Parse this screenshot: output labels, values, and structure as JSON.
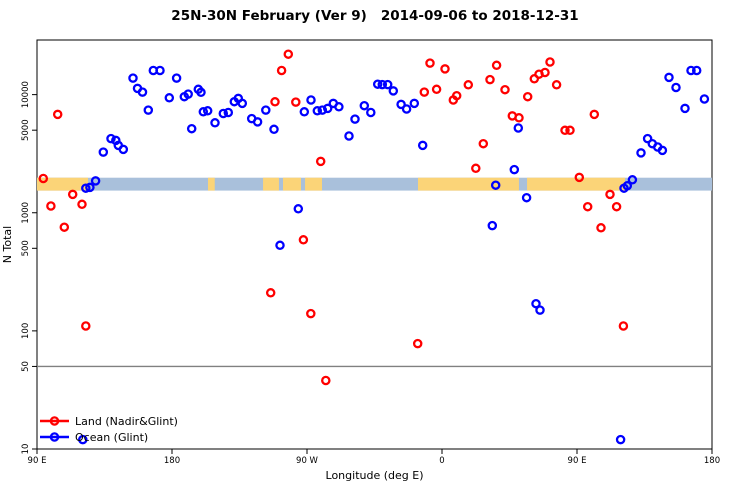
{
  "chart_data": {
    "type": "scatter",
    "title": "25N-30N February (Ver 9)   2014-09-06 to 2018-12-31",
    "xlabel": "Longitude (deg E)",
    "ylabel": "N Total",
    "x_axis": {
      "min": 90,
      "max": 540,
      "note": "longitude axis wraps eastward from 90E around the globe to 180",
      "ticks": [
        {
          "pos": 90,
          "label": "90 E"
        },
        {
          "pos": 180,
          "label": "180"
        },
        {
          "pos": 270,
          "label": "90 W"
        },
        {
          "pos": 360,
          "label": "0"
        },
        {
          "pos": 450,
          "label": "90 E"
        },
        {
          "pos": 540,
          "label": "180"
        }
      ]
    },
    "y_axis": {
      "scale": "log",
      "min": 10,
      "max": 29000,
      "ticks": [
        {
          "value": 10,
          "label": "10"
        },
        {
          "value": 50,
          "label": "50"
        },
        {
          "value": 100,
          "label": "100"
        },
        {
          "value": 500,
          "label": "500"
        },
        {
          "value": 1000,
          "label": "1000"
        },
        {
          "value": 5000,
          "label": "5000"
        },
        {
          "value": 10000,
          "label": "10000"
        }
      ]
    },
    "reference_line": {
      "value": 50,
      "color": "#808080"
    },
    "map_band": {
      "description": "world-map strip at 25N-30N: ocean blue with land segments",
      "value_top": 1980,
      "value_bottom": 1540,
      "ocean_color": "#A9C0DB",
      "land_color": "#FBD478",
      "land_segments_deg": [
        [
          90,
          124
        ],
        [
          204,
          208.5
        ],
        [
          240.7,
          251.3
        ],
        [
          254,
          266
        ],
        [
          268.7,
          280
        ],
        [
          344,
          411.3
        ],
        [
          416.7,
          482
        ]
      ]
    },
    "legend": {
      "items": [
        {
          "label": "Land (Nadir&Glint)",
          "color": "#FF0000"
        },
        {
          "label": "Ocean (Glint)",
          "color": "#0000FF"
        }
      ]
    },
    "series": [
      {
        "name": "Land (Nadir&Glint)",
        "color": "#FF0000",
        "marker": "open-circle",
        "points": [
          [
            103.8,
            6800
          ],
          [
            94.2,
            1950
          ],
          [
            113.8,
            1430
          ],
          [
            99.3,
            1140
          ],
          [
            120,
            1180
          ],
          [
            108.2,
            755
          ],
          [
            122.5,
            110
          ],
          [
            257.5,
            22000
          ],
          [
            253.1,
            16000
          ],
          [
            248.7,
            8700
          ],
          [
            262.5,
            8650
          ],
          [
            279.1,
            2720
          ],
          [
            267.6,
            590
          ],
          [
            245.8,
            210
          ],
          [
            272.5,
            140
          ],
          [
            282.5,
            38
          ],
          [
            352,
            18500
          ],
          [
            362,
            16500
          ],
          [
            348.2,
            10500
          ],
          [
            356.4,
            11100
          ],
          [
            367.5,
            9000
          ],
          [
            369.8,
            9800
          ],
          [
            377.5,
            12100
          ],
          [
            392,
            13400
          ],
          [
            396.4,
            17700
          ],
          [
            402,
            11000
          ],
          [
            417.1,
            9600
          ],
          [
            421.5,
            13600
          ],
          [
            424.7,
            14900
          ],
          [
            406.9,
            6600
          ],
          [
            411.3,
            6360
          ],
          [
            387.5,
            3840
          ],
          [
            382.5,
            2380
          ],
          [
            343.8,
            78
          ],
          [
            432,
            18900
          ],
          [
            428.7,
            15400
          ],
          [
            436.4,
            12100
          ],
          [
            461.5,
            6800
          ],
          [
            442,
            4990
          ],
          [
            445.3,
            4990
          ],
          [
            451.5,
            1990
          ],
          [
            472,
            1430
          ],
          [
            476.4,
            1125
          ],
          [
            457.1,
            1125
          ],
          [
            466,
            745
          ],
          [
            480.9,
            110
          ]
        ]
      },
      {
        "name": "Ocean (Glint)",
        "color": "#0000FF",
        "marker": "open-circle",
        "points": [
          [
            154,
            13800
          ],
          [
            157,
            11300
          ],
          [
            160.3,
            10500
          ],
          [
            167.5,
            16000
          ],
          [
            172,
            16000
          ],
          [
            183.1,
            13800
          ],
          [
            178.2,
            9400
          ],
          [
            188.2,
            9600
          ],
          [
            190.8,
            10100
          ],
          [
            197.5,
            11100
          ],
          [
            199.3,
            10470
          ],
          [
            164.2,
            7400
          ],
          [
            200.9,
            7160
          ],
          [
            193.1,
            5150
          ],
          [
            139.3,
            4240
          ],
          [
            142.5,
            4100
          ],
          [
            144.2,
            3720
          ],
          [
            147.5,
            3440
          ],
          [
            134.2,
            3260
          ],
          [
            129.1,
            1860
          ],
          [
            125.3,
            1640
          ],
          [
            122.5,
            1615
          ],
          [
            203.8,
            7300
          ],
          [
            208.7,
            5770
          ],
          [
            214.2,
            6920
          ],
          [
            217.5,
            7060
          ],
          [
            221.5,
            8710
          ],
          [
            224.2,
            9290
          ],
          [
            226.9,
            8430
          ],
          [
            233.1,
            6270
          ],
          [
            237.1,
            5880
          ],
          [
            242.5,
            7400
          ],
          [
            248,
            5090
          ],
          [
            268.2,
            7160
          ],
          [
            272.7,
            9010
          ],
          [
            276.9,
            7300
          ],
          [
            280.2,
            7400
          ],
          [
            283.8,
            7640
          ],
          [
            287.5,
            8430
          ],
          [
            291.3,
            7890
          ],
          [
            298,
            4460
          ],
          [
            302,
            6200
          ],
          [
            308.2,
            8050
          ],
          [
            312.5,
            7060
          ],
          [
            264.2,
            1080
          ],
          [
            252,
            530
          ],
          [
            317.1,
            12250
          ],
          [
            320.2,
            12150
          ],
          [
            323.8,
            12150
          ],
          [
            327.5,
            10760
          ],
          [
            332.7,
            8260
          ],
          [
            336.4,
            7550
          ],
          [
            341.5,
            8430
          ],
          [
            347.1,
            3715
          ],
          [
            410.9,
            5220
          ],
          [
            408.2,
            2320
          ],
          [
            395.8,
            1710
          ],
          [
            416.4,
            1340
          ],
          [
            393.5,
            778
          ],
          [
            526,
            16000
          ],
          [
            529.8,
            16000
          ],
          [
            511.3,
            14000
          ],
          [
            516,
            11480
          ],
          [
            534.9,
            9180
          ],
          [
            522,
            7650
          ],
          [
            497.1,
            4240
          ],
          [
            500.2,
            3840
          ],
          [
            503.8,
            3600
          ],
          [
            506.9,
            3370
          ],
          [
            492.7,
            3210
          ],
          [
            486.9,
            1900
          ],
          [
            483.5,
            1690
          ],
          [
            481.3,
            1615
          ],
          [
            422.7,
            170
          ],
          [
            425.3,
            150
          ],
          [
            479.1,
            12
          ],
          [
            120.5,
            12
          ]
        ]
      }
    ]
  }
}
